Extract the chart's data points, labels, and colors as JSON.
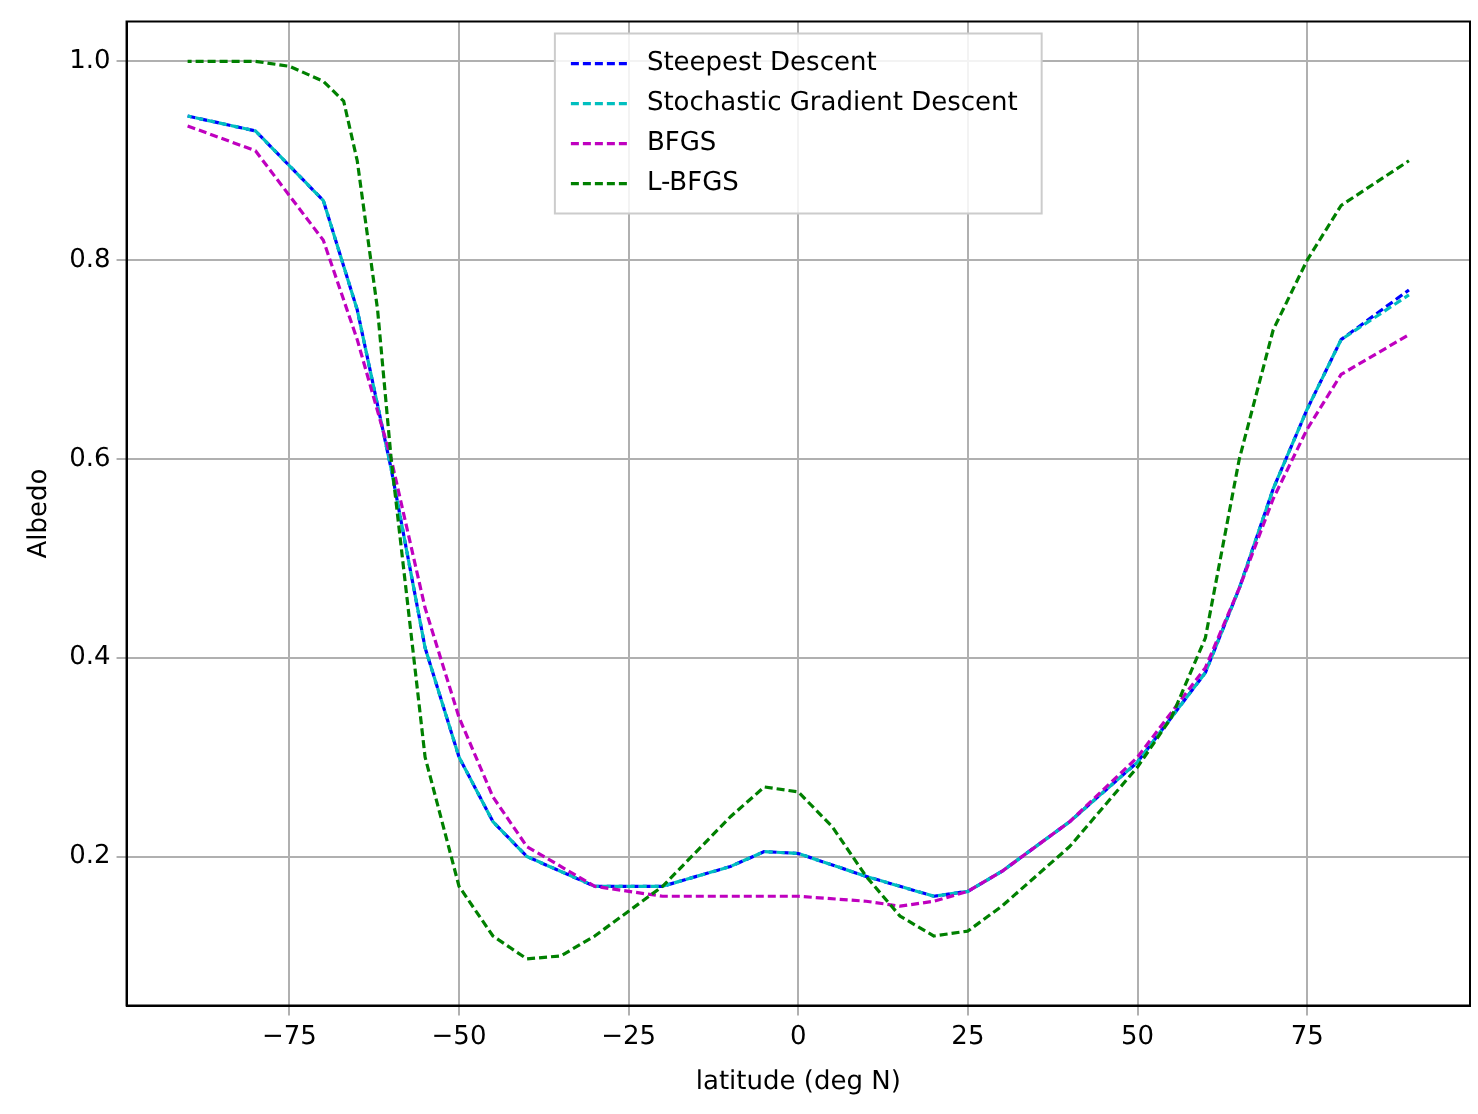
{
  "chart_data": {
    "type": "line",
    "xlabel": "latitude (deg N)",
    "ylabel": "Albedo",
    "xlim": [
      -99,
      99
    ],
    "ylim": [
      0.05,
      1.04
    ],
    "xticks": [
      -75,
      -50,
      -25,
      0,
      25,
      50,
      75
    ],
    "yticks": [
      0.2,
      0.4,
      0.6,
      0.8,
      {
        "value": 1,
        "label": "1.0"
      }
    ],
    "grid": true,
    "legend": "top",
    "marker": "none",
    "line_style": "dashed",
    "series": [
      {
        "name": "Steepest Descent",
        "color": "#0000ff",
        "x": [
          -90,
          -80,
          -70,
          -65,
          -60,
          -55,
          -50,
          -45,
          -40,
          -30,
          -20,
          -10,
          -5,
          0,
          10,
          20,
          25,
          30,
          40,
          50,
          60,
          65,
          70,
          75,
          80,
          90
        ],
        "values": [
          0.945,
          0.93,
          0.86,
          0.75,
          0.59,
          0.41,
          0.3,
          0.235,
          0.2,
          0.17,
          0.17,
          0.19,
          0.205,
          0.203,
          0.18,
          0.16,
          0.165,
          0.185,
          0.235,
          0.295,
          0.385,
          0.47,
          0.57,
          0.65,
          0.72,
          0.77
        ]
      },
      {
        "name": "Stochastic Gradient Descent",
        "color": "#00bfbf",
        "x": [
          -90,
          -80,
          -70,
          -65,
          -60,
          -55,
          -50,
          -45,
          -40,
          -30,
          -20,
          -10,
          -5,
          0,
          10,
          20,
          25,
          30,
          40,
          50,
          60,
          65,
          70,
          75,
          80,
          90
        ],
        "values": [
          0.945,
          0.93,
          0.86,
          0.75,
          0.59,
          0.41,
          0.3,
          0.235,
          0.2,
          0.17,
          0.17,
          0.19,
          0.205,
          0.203,
          0.18,
          0.16,
          0.165,
          0.185,
          0.235,
          0.295,
          0.385,
          0.47,
          0.57,
          0.65,
          0.72,
          0.765
        ]
      },
      {
        "name": "BFGS",
        "color": "#bf00bf",
        "x": [
          -90,
          -80,
          -70,
          -65,
          -60,
          -55,
          -50,
          -45,
          -40,
          -30,
          -20,
          -10,
          0,
          10,
          15,
          20,
          25,
          30,
          40,
          50,
          60,
          65,
          70,
          75,
          80,
          90
        ],
        "values": [
          0.935,
          0.91,
          0.82,
          0.72,
          0.6,
          0.45,
          0.34,
          0.26,
          0.21,
          0.17,
          0.16,
          0.16,
          0.16,
          0.155,
          0.15,
          0.155,
          0.165,
          0.185,
          0.235,
          0.3,
          0.39,
          0.47,
          0.56,
          0.63,
          0.685,
          0.725
        ]
      },
      {
        "name": "L-BFGS",
        "color": "#008000",
        "x": [
          -90,
          -80,
          -75,
          -70,
          -67,
          -65,
          -62,
          -60,
          -57,
          -55,
          -50,
          -45,
          -40,
          -35,
          -30,
          -20,
          -10,
          -5,
          0,
          5,
          10,
          15,
          20,
          25,
          30,
          40,
          50,
          55,
          60,
          65,
          70,
          75,
          80,
          90
        ],
        "values": [
          1.0,
          1.0,
          0.995,
          0.98,
          0.96,
          0.9,
          0.75,
          0.6,
          0.42,
          0.3,
          0.17,
          0.12,
          0.097,
          0.1,
          0.12,
          0.17,
          0.24,
          0.27,
          0.265,
          0.23,
          0.18,
          0.14,
          0.12,
          0.125,
          0.15,
          0.21,
          0.29,
          0.34,
          0.42,
          0.6,
          0.73,
          0.8,
          0.855,
          0.9
        ]
      }
    ]
  }
}
